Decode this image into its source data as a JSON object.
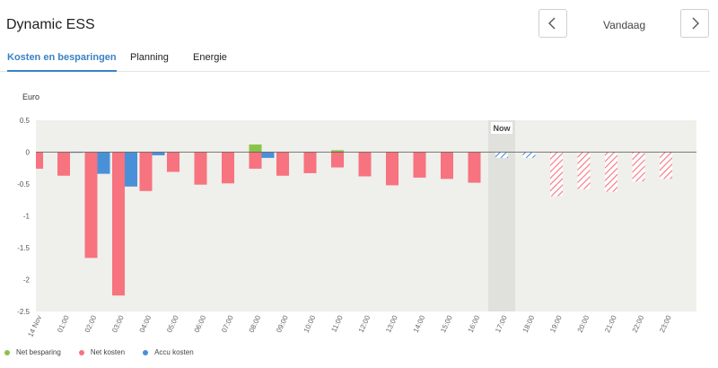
{
  "header": {
    "title": "Dynamic ESS",
    "date_label": "Vandaag",
    "prev_icon": "chevron-left-icon",
    "next_icon": "chevron-right-icon"
  },
  "tabs": [
    {
      "label": "Kosten en besparingen",
      "active": true
    },
    {
      "label": "Planning",
      "active": false
    },
    {
      "label": "Energie",
      "active": false
    }
  ],
  "colors": {
    "net_besparing": "#8bc34a",
    "net_kosten": "#f7737f",
    "accu_kosten": "#4a90d9",
    "plot_bg": "#efefeb",
    "now_band": "#e0e0dc"
  },
  "chart_data": {
    "type": "bar",
    "title": "",
    "ylabel": "Euro",
    "ylim": [
      -2.5,
      0.5
    ],
    "yticks": [
      "0.5",
      "0",
      "-0.5",
      "-1",
      "-1.5",
      "-2",
      "-2.5"
    ],
    "ytick_values": [
      0.5,
      0,
      -0.5,
      -1,
      -1.5,
      -2,
      -2.5
    ],
    "x_tick_labels": [
      "14 Nov",
      "01:00",
      "02:00",
      "03:00",
      "04:00",
      "05:00",
      "06:00",
      "07:00",
      "08:00",
      "09:00",
      "10:00",
      "11:00",
      "12:00",
      "13:00",
      "14:00",
      "15:00",
      "16:00",
      "17:00",
      "18:00",
      "19:00",
      "20:00",
      "21:00",
      "22:00",
      "23:00"
    ],
    "now_hour": 17,
    "now_label": "Now",
    "series": [
      {
        "name": "Net besparing",
        "values": [
          0,
          0,
          0,
          0,
          0,
          0,
          0,
          0,
          0.12,
          0,
          0,
          0.03,
          0,
          0,
          0,
          0,
          0,
          0,
          0,
          0,
          0,
          0,
          0,
          0
        ]
      },
      {
        "name": "Net kosten",
        "values": [
          -0.26,
          -0.37,
          -1.66,
          -2.25,
          -0.61,
          -0.31,
          -0.51,
          -0.49,
          -0.26,
          -0.37,
          -0.33,
          -0.24,
          -0.38,
          -0.52,
          -0.4,
          -0.42,
          -0.48,
          0,
          0,
          -0.69,
          -0.58,
          -0.62,
          -0.46,
          -0.42
        ]
      },
      {
        "name": "Accu kosten",
        "values": [
          0,
          -0.01,
          -0.34,
          -0.54,
          -0.05,
          0,
          0,
          0,
          -0.09,
          0,
          0,
          0,
          0,
          0,
          0,
          0,
          0,
          -0.09,
          -0.09,
          0,
          0,
          0,
          0,
          0
        ]
      }
    ]
  }
}
